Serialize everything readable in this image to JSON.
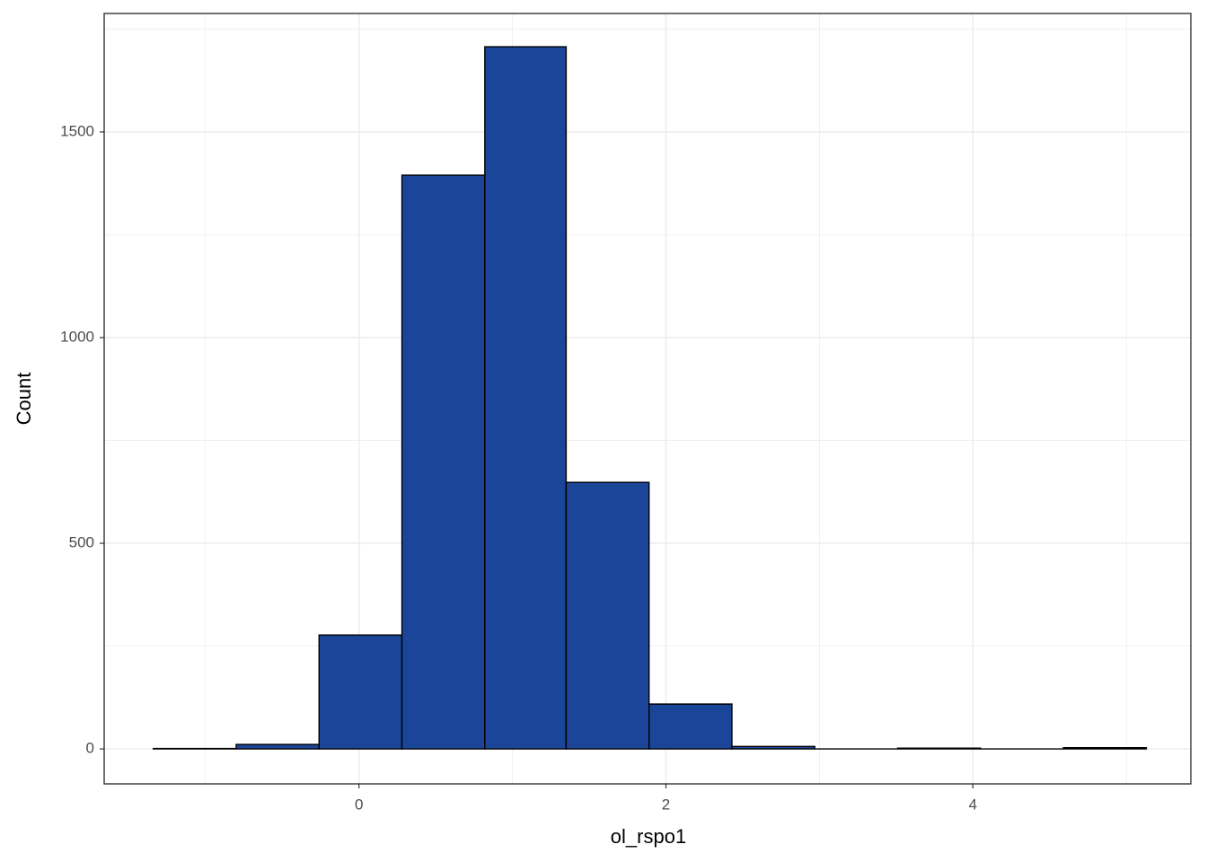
{
  "chart_data": {
    "type": "histogram",
    "x_label": "ol_rspo1",
    "y_label": "Count",
    "bins": [
      -1.34,
      -0.8,
      -0.26,
      0.28,
      0.82,
      1.35,
      1.89,
      2.43,
      2.97,
      3.51,
      4.05,
      4.59,
      5.13
    ],
    "counts": [
      1,
      11,
      277,
      1395,
      1707,
      648,
      109,
      6,
      0,
      2,
      0,
      3
    ],
    "color": "#1a4599",
    "edge_color": "#000000",
    "xlim": [
      -1.66,
      5.42
    ],
    "xticks": [
      0,
      2,
      4
    ],
    "x_minor_ticks": [
      -1,
      1,
      3,
      5
    ],
    "ylim": [
      -85,
      1788
    ],
    "yticks": [
      0,
      500,
      1000,
      1500
    ],
    "y_minor_ticks": [
      250,
      750,
      1250,
      1750
    ],
    "grid": true
  }
}
